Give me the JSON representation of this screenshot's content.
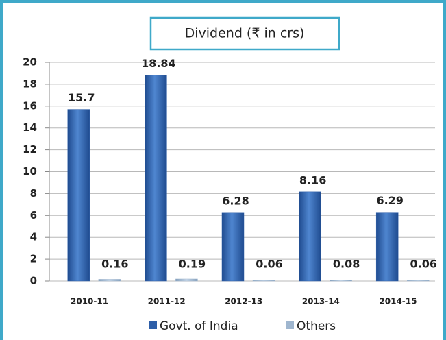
{
  "chart_data": {
    "type": "bar",
    "title": "Dividend (₹  in crs)",
    "categories": [
      "2010-11",
      "2011-12",
      "2012-13",
      "2013-14",
      "2014-15"
    ],
    "series": [
      {
        "name": "Govt. of India",
        "color": "#2e5fa8",
        "values": [
          15.7,
          18.84,
          6.28,
          8.16,
          6.29
        ]
      },
      {
        "name": "Others",
        "color": "#9fb6cf",
        "values": [
          0.16,
          0.19,
          0.06,
          0.08,
          0.06
        ]
      }
    ],
    "ylim": [
      0,
      20
    ],
    "yticks": [
      0,
      2,
      4,
      6,
      8,
      10,
      12,
      14,
      16,
      18,
      20
    ],
    "grid": true,
    "legend": "bottom"
  }
}
